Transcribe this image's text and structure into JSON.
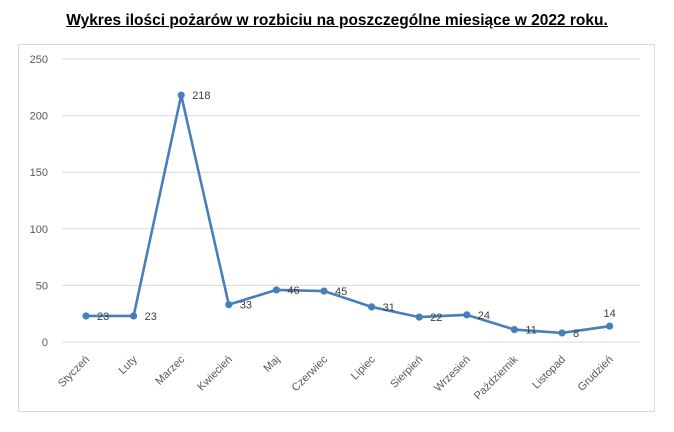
{
  "title": "Wykres ilości pożarów w rozbiciu na poszczególne miesiące w 2022 roku.",
  "chart_data": {
    "type": "line",
    "title": "Wykres ilości pożarów w rozbiciu na poszczególne miesiące w 2022 roku.",
    "xlabel": "",
    "ylabel": "",
    "categories": [
      "Styczeń",
      "Luty",
      "Marzec",
      "Kwiecień",
      "Maj",
      "Czerwiec",
      "Lipiec",
      "Sierpień",
      "Wrzesień",
      "Październik",
      "Listopad",
      "Grudzień"
    ],
    "series": [
      {
        "values": [
          23,
          23,
          218,
          33,
          46,
          45,
          31,
          22,
          24,
          11,
          8,
          14
        ]
      }
    ],
    "ylim": [
      0,
      250
    ],
    "yticks": [
      0,
      50,
      100,
      150,
      200,
      250
    ],
    "grid": true,
    "legend": "none",
    "line_color": "#4a7ebb"
  }
}
